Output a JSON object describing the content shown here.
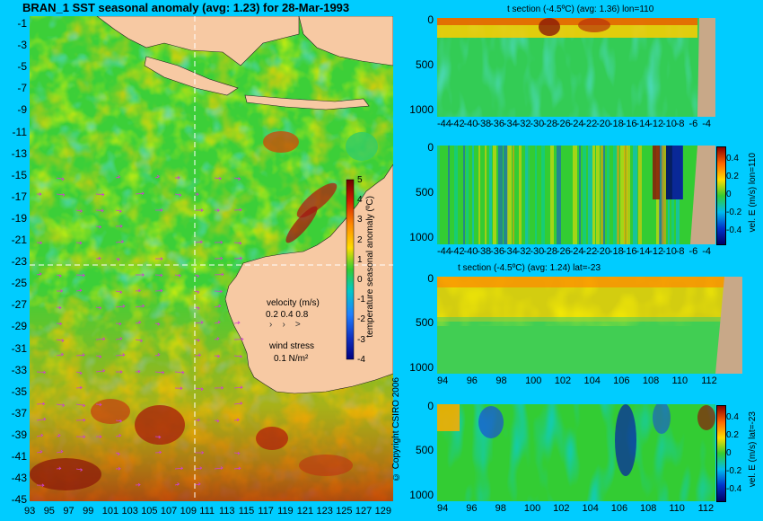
{
  "map": {
    "title": "BRAN_1  SST seasonal anomaly  (avg: 1.23)  for 28-Mar-1993",
    "lat_labels": [
      "-1",
      "-3",
      "-5",
      "-7",
      "-9",
      "-11",
      "-13",
      "-15",
      "-17",
      "-19",
      "-21",
      "-23",
      "-25",
      "-27",
      "-29",
      "-31",
      "-33",
      "-35",
      "-37",
      "-39",
      "-41",
      "-43",
      "-45"
    ],
    "lon_labels": [
      "93",
      "95",
      "97",
      "99",
      "101",
      "103",
      "105",
      "107",
      "109",
      "111",
      "113",
      "115",
      "117",
      "119",
      "121",
      "123",
      "125",
      "127",
      "129"
    ],
    "colorbar_ticks": [
      "5",
      "4",
      "3",
      "2",
      "1",
      "0",
      "-1",
      "-2",
      "-3",
      "-4"
    ],
    "colorbar_label": "temperature seasonal anomaly (ºC)",
    "velocity_label": "velocity (m/s)",
    "velocity_scale": "0.2 0.4 0.8",
    "wind_label": "wind stress",
    "wind_scale": "0.1 N/m²",
    "copyright": "© Copyright CSIRO 2006",
    "colors": {
      "land": "#f7c9a3",
      "ocean_green": "#2fcf3a",
      "warm": "#ff9b00",
      "hot": "#b41c0a",
      "cool": "#1fb5e6"
    }
  },
  "panels": [
    {
      "title": "t section (-4.5ºC)  (avg: 1.36) lon=110",
      "yticks": [
        "0",
        "500",
        "1000"
      ],
      "xticks": [
        "-44",
        "-42",
        "-40",
        "-38",
        "-36",
        "-34",
        "-32",
        "-30",
        "-28",
        "-26",
        "-24",
        "-22",
        "-20",
        "-18",
        "-16",
        "-14",
        "-12",
        "-10",
        "-8",
        "-6",
        "-4"
      ]
    },
    {
      "title": "",
      "yticks": [
        "0",
        "500",
        "1000"
      ],
      "xticks": [
        "-44",
        "-42",
        "-40",
        "-38",
        "-36",
        "-34",
        "-32",
        "-30",
        "-28",
        "-26",
        "-24",
        "-22",
        "-20",
        "-18",
        "-16",
        "-14",
        "-12",
        "-10",
        "-8",
        "-6",
        "-4"
      ],
      "cbar_ticks": [
        "0.4",
        "0.2",
        "0",
        "-0.2",
        "-0.4"
      ],
      "cbar_label": "vel. E (m/s) lon=110"
    },
    {
      "title": "t section (-4.5ºC)  (avg: 1.24) lat=-23",
      "yticks": [
        "0",
        "500",
        "1000"
      ],
      "xticks": [
        "94",
        "96",
        "98",
        "100",
        "102",
        "104",
        "106",
        "108",
        "110",
        "112"
      ]
    },
    {
      "title": "",
      "yticks": [
        "0",
        "500",
        "1000"
      ],
      "xticks": [
        "94",
        "96",
        "98",
        "100",
        "102",
        "104",
        "106",
        "108",
        "110",
        "112"
      ],
      "cbar_ticks": [
        "0.4",
        "0.2",
        "0",
        "-0.2",
        "-0.4"
      ],
      "cbar_label": "vel. E (m/s) lat=-23"
    }
  ]
}
